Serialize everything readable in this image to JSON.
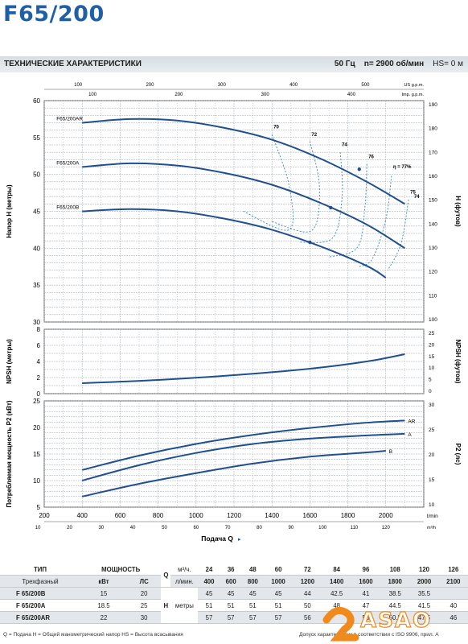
{
  "page": {
    "title": "F65/200",
    "spec_title": "ТЕХНИЧЕСКИЕ ХАРАКТЕРИСТИКИ",
    "spec_freq": "50 Гц",
    "spec_speed": "n= 2900  об/мин",
    "spec_hs": "HS= 0 м"
  },
  "colors": {
    "curve": "#1f4f8f",
    "efficiency": "#2f86c8",
    "grid": "#9aa4ae",
    "title": "#1f5fa8",
    "accent": "#f08a1c"
  },
  "chart_data": [
    {
      "type": "line",
      "name": "head",
      "ylabel": "Напор H (метры)",
      "y2label": "H (футов)",
      "x_unit": "l/min",
      "xlim": [
        200,
        2200
      ],
      "ylim": [
        30,
        60
      ],
      "y_ticks": [
        30,
        35,
        40,
        45,
        50,
        55,
        60
      ],
      "y2_ticks": [
        100,
        110,
        120,
        130,
        140,
        150,
        160,
        170,
        180,
        190
      ],
      "top_axis_us": {
        "label": "US g.p.m.",
        "ticks": [
          100,
          200,
          300,
          400,
          500
        ]
      },
      "top_axis_imp": {
        "label": "Imp. g.p.m.",
        "ticks": [
          100,
          200,
          300,
          400
        ]
      },
      "series": [
        {
          "name": "F65/200AR",
          "x": [
            400,
            650,
            900,
            1150,
            1400,
            1650,
            1900,
            2100
          ],
          "y": [
            57,
            57.5,
            57.3,
            56.3,
            54.7,
            52.2,
            49,
            46
          ]
        },
        {
          "name": "F65/200A",
          "x": [
            400,
            650,
            900,
            1150,
            1400,
            1650,
            1900,
            2100
          ],
          "y": [
            51,
            51.5,
            51.2,
            50.2,
            48.6,
            46.2,
            43.2,
            40
          ]
        },
        {
          "name": "F65/200B",
          "x": [
            400,
            650,
            900,
            1150,
            1400,
            1650,
            1900,
            2000
          ],
          "y": [
            45,
            45.3,
            45,
            44,
            42.5,
            40.3,
            37.6,
            36
          ]
        }
      ],
      "efficiency": {
        "labels": [
          "70",
          "72",
          "74",
          "76",
          "η = 77%",
          "75",
          "74"
        ],
        "curves": [
          [
            [
              1400,
              55.4
            ],
            [
              1490,
              48.5
            ],
            [
              1490,
              42.5
            ],
            [
              1250,
              45
            ]
          ],
          [
            [
              1600,
              54.5
            ],
            [
              1650,
              48.4
            ],
            [
              1610,
              42.4
            ],
            [
              1400,
              43.6
            ]
          ],
          [
            [
              1760,
              53.0
            ],
            [
              1770,
              47.1
            ],
            [
              1720,
              41.4
            ],
            [
              1550,
              40.8
            ]
          ],
          [
            [
              1900,
              51.4
            ],
            [
              1890,
              45.6
            ],
            [
              1850,
              40.1
            ],
            [
              1700,
              38.8
            ]
          ],
          [
            [
              2030,
              49.8
            ],
            [
              2000,
              43.9
            ],
            [
              1930,
              38.6
            ],
            [
              1860,
              37.5
            ]
          ],
          [
            [
              2120,
              46.6
            ],
            [
              2080,
              40.6
            ],
            [
              2010,
              37.0
            ]
          ]
        ],
        "bep_points": [
          [
            1860,
            50.7
          ],
          [
            1710,
            45.5
          ],
          [
            1600,
            40.8
          ]
        ]
      }
    },
    {
      "type": "line",
      "name": "npsh",
      "ylabel": "NPSH (метры)",
      "y2label": "NPSH (футов)",
      "ylim": [
        0,
        8
      ],
      "y_ticks": [
        0,
        2,
        4,
        6,
        8
      ],
      "y2_ticks": [
        0,
        5,
        10,
        15,
        20,
        25
      ],
      "series": [
        {
          "name": "NPSH",
          "x": [
            400,
            800,
            1200,
            1600,
            1900,
            2100
          ],
          "y": [
            1.3,
            1.7,
            2.3,
            3.1,
            4.0,
            4.9
          ]
        }
      ]
    },
    {
      "type": "line",
      "name": "power",
      "ylabel": "Потребляемая мощность P2 (кВт)",
      "y2label": "P2 (лс)",
      "xlabel": "Подача Q",
      "x_ticks": [
        200,
        400,
        600,
        800,
        1000,
        1200,
        1400,
        1600,
        1800,
        2000
      ],
      "x_unit_bottom": "m³/h",
      "x_ticks_bottom": [
        10,
        20,
        30,
        40,
        50,
        60,
        70,
        80,
        90,
        100,
        110,
        120
      ],
      "ylim": [
        5,
        25
      ],
      "y_ticks": [
        5,
        10,
        15,
        20,
        25
      ],
      "y2_ticks": [
        10,
        15,
        20,
        25,
        30
      ],
      "series": [
        {
          "name": "AR",
          "x": [
            400,
            700,
            1000,
            1300,
            1600,
            1900,
            2100
          ],
          "y": [
            12,
            14.7,
            16.9,
            18.6,
            19.9,
            20.9,
            21.3
          ]
        },
        {
          "name": "A",
          "x": [
            400,
            700,
            1000,
            1300,
            1600,
            1900,
            2100
          ],
          "y": [
            10,
            12.9,
            15.2,
            16.9,
            17.9,
            18.5,
            18.8
          ]
        },
        {
          "name": "B",
          "x": [
            400,
            700,
            1000,
            1300,
            1600,
            1900,
            2000
          ],
          "y": [
            7,
            9.4,
            11.4,
            13.2,
            14.5,
            15.3,
            15.6
          ]
        }
      ]
    }
  ],
  "table": {
    "type_header": "ТИП",
    "type_sub": "Трехфазный",
    "power_header": "МОЩНОСТЬ",
    "kw": "кВт",
    "hp": "ЛС",
    "q_label": "Q",
    "unit_m3": "м³/ч.",
    "unit_lmin": "л/мин.",
    "h_label": "H",
    "h_unit": "метры",
    "q_m3": [
      "24",
      "36",
      "48",
      "60",
      "72",
      "84",
      "96",
      "108",
      "120",
      "126"
    ],
    "q_lmin": [
      "400",
      "600",
      "800",
      "1000",
      "1200",
      "1400",
      "1600",
      "1800",
      "2000",
      "2100"
    ],
    "rows": [
      {
        "name": "F 65/200B",
        "kw": "15",
        "hp": "20",
        "h": [
          "45",
          "45",
          "45",
          "45",
          "44",
          "42.5",
          "41",
          "38.5",
          "35.5",
          ""
        ]
      },
      {
        "name": "F 65/200A",
        "kw": "18.5",
        "hp": "25",
        "h": [
          "51",
          "51",
          "51",
          "51",
          "50",
          "48",
          "47",
          "44.5",
          "41.5",
          "40"
        ]
      },
      {
        "name": "F 65/200AR",
        "kw": "22",
        "hp": "30",
        "h": [
          "57",
          "57",
          "57",
          "57",
          "56",
          "",
          "53",
          "50.5",
          "47.5",
          "46"
        ]
      }
    ]
  },
  "footer": {
    "legend": "Q = Подача   H = Общий манометрический напор   HS = Высота всасывания",
    "note": "Допуск характеристик в соответствии с ISO 9906, прил. A"
  },
  "logo": {
    "text": "ASAO"
  }
}
